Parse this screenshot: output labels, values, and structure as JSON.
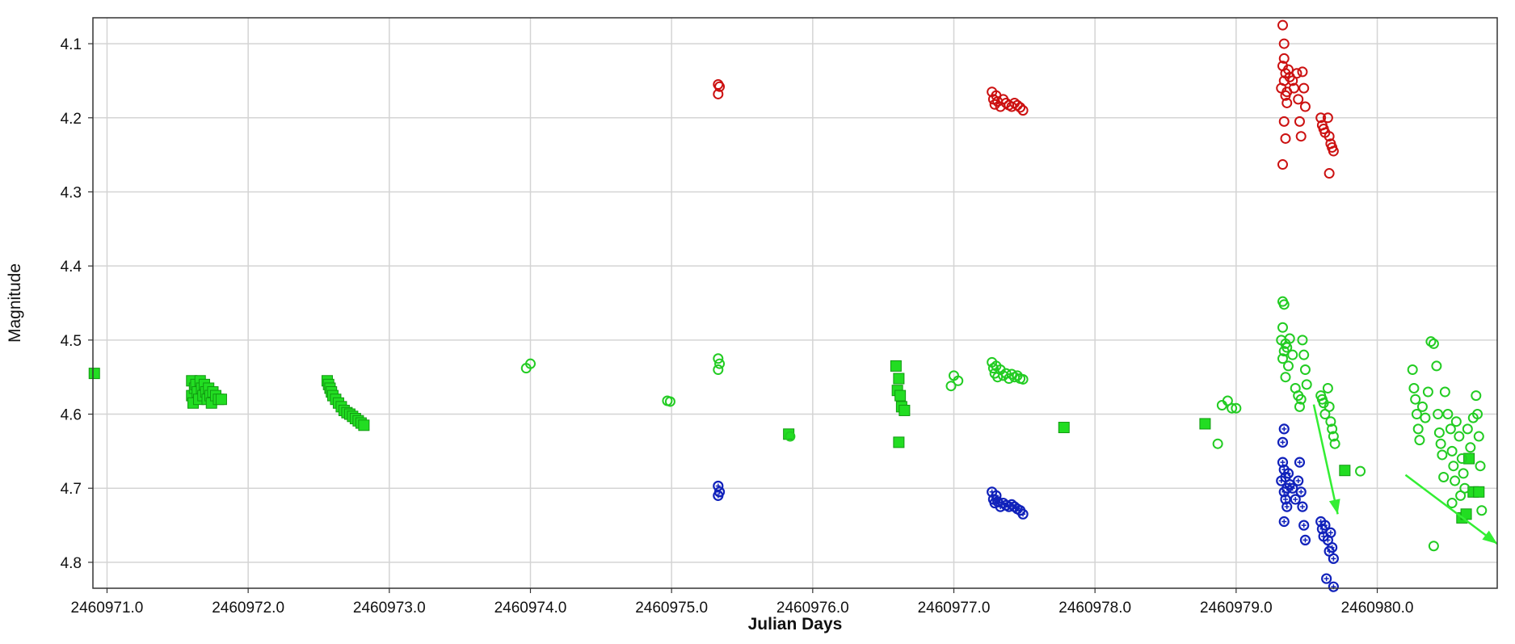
{
  "chart_data": {
    "type": "scatter",
    "title": "",
    "xlabel": "Julian Days",
    "ylabel": "Magnitude",
    "xlim": [
      2460970.9,
      2460980.85
    ],
    "ylim": [
      4.065,
      4.835
    ],
    "y_inverted": true,
    "grid": true,
    "x_ticks": [
      2460971.0,
      2460972.0,
      2460973.0,
      2460974.0,
      2460975.0,
      2460976.0,
      2460977.0,
      2460978.0,
      2460979.0,
      2460980.0
    ],
    "x_tick_labels": [
      "2460971.0",
      "2460972.0",
      "2460973.0",
      "2460974.0",
      "2460975.0",
      "2460976.0",
      "2460977.0",
      "2460978.0",
      "2460979.0",
      "2460980.0"
    ],
    "y_ticks": [
      4.1,
      4.2,
      4.3,
      4.4,
      4.5,
      4.6,
      4.7,
      4.8
    ],
    "y_tick_labels": [
      "4.1",
      "4.2",
      "4.3",
      "4.4",
      "4.5",
      "4.6",
      "4.7",
      "4.8"
    ],
    "series": [
      {
        "marker": "square-filled",
        "color": "#22dd22",
        "points": [
          [
            2460970.91,
            4.545
          ],
          [
            2460971.6,
            4.555
          ],
          [
            2460971.6,
            4.575
          ],
          [
            2460971.61,
            4.585
          ],
          [
            2460971.62,
            4.565
          ],
          [
            2460971.63,
            4.56
          ],
          [
            2460971.64,
            4.57
          ],
          [
            2460971.65,
            4.58
          ],
          [
            2460971.66,
            4.555
          ],
          [
            2460971.67,
            4.565
          ],
          [
            2460971.68,
            4.575
          ],
          [
            2460971.69,
            4.56
          ],
          [
            2460971.7,
            4.57
          ],
          [
            2460971.71,
            4.58
          ],
          [
            2460971.72,
            4.565
          ],
          [
            2460971.73,
            4.575
          ],
          [
            2460971.74,
            4.585
          ],
          [
            2460971.75,
            4.57
          ],
          [
            2460971.77,
            4.575
          ],
          [
            2460971.79,
            4.58
          ],
          [
            2460971.81,
            4.58
          ],
          [
            2460972.56,
            4.555
          ],
          [
            2460972.57,
            4.56
          ],
          [
            2460972.58,
            4.565
          ],
          [
            2460972.59,
            4.57
          ],
          [
            2460972.6,
            4.575
          ],
          [
            2460972.62,
            4.58
          ],
          [
            2460972.64,
            4.585
          ],
          [
            2460972.66,
            4.59
          ],
          [
            2460972.68,
            4.595
          ],
          [
            2460972.7,
            4.598
          ],
          [
            2460972.72,
            4.6
          ],
          [
            2460972.74,
            4.603
          ],
          [
            2460972.76,
            4.606
          ],
          [
            2460972.78,
            4.609
          ],
          [
            2460972.8,
            4.612
          ],
          [
            2460972.82,
            4.615
          ],
          [
            2460975.83,
            4.627
          ],
          [
            2460976.59,
            4.535
          ],
          [
            2460976.61,
            4.552
          ],
          [
            2460976.6,
            4.568
          ],
          [
            2460976.62,
            4.575
          ],
          [
            2460976.63,
            4.59
          ],
          [
            2460976.65,
            4.595
          ],
          [
            2460976.61,
            4.638
          ],
          [
            2460977.78,
            4.618
          ],
          [
            2460978.78,
            4.613
          ],
          [
            2460979.77,
            4.676
          ],
          [
            2460980.6,
            4.74
          ],
          [
            2460980.63,
            4.735
          ],
          [
            2460980.68,
            4.705
          ],
          [
            2460980.72,
            4.705
          ],
          [
            2460980.65,
            4.66
          ]
        ]
      },
      {
        "marker": "circle-open",
        "color": "#22cc22",
        "points": [
          [
            2460973.97,
            4.538
          ],
          [
            2460974.0,
            4.532
          ],
          [
            2460974.97,
            4.582
          ],
          [
            2460974.99,
            4.583
          ],
          [
            2460975.33,
            4.525
          ],
          [
            2460975.34,
            4.532
          ],
          [
            2460975.33,
            4.54
          ],
          [
            2460975.84,
            4.63
          ],
          [
            2460976.98,
            4.562
          ],
          [
            2460977.0,
            4.548
          ],
          [
            2460977.03,
            4.555
          ],
          [
            2460977.27,
            4.53
          ],
          [
            2460977.28,
            4.538
          ],
          [
            2460977.29,
            4.545
          ],
          [
            2460977.3,
            4.535
          ],
          [
            2460977.31,
            4.55
          ],
          [
            2460977.33,
            4.54
          ],
          [
            2460977.35,
            4.548
          ],
          [
            2460977.37,
            4.545
          ],
          [
            2460977.39,
            4.552
          ],
          [
            2460977.41,
            4.546
          ],
          [
            2460977.43,
            4.55
          ],
          [
            2460977.45,
            4.548
          ],
          [
            2460977.47,
            4.552
          ],
          [
            2460977.49,
            4.553
          ],
          [
            2460978.87,
            4.64
          ],
          [
            2460978.9,
            4.588
          ],
          [
            2460978.94,
            4.582
          ],
          [
            2460978.97,
            4.592
          ],
          [
            2460979.0,
            4.592
          ],
          [
            2460979.33,
            4.448
          ],
          [
            2460979.34,
            4.452
          ],
          [
            2460979.33,
            4.483
          ],
          [
            2460979.32,
            4.5
          ],
          [
            2460979.35,
            4.505
          ],
          [
            2460979.34,
            4.515
          ],
          [
            2460979.33,
            4.525
          ],
          [
            2460979.36,
            4.51
          ],
          [
            2460979.38,
            4.498
          ],
          [
            2460979.37,
            4.535
          ],
          [
            2460979.35,
            4.55
          ],
          [
            2460979.4,
            4.52
          ],
          [
            2460979.42,
            4.565
          ],
          [
            2460979.44,
            4.575
          ],
          [
            2460979.45,
            4.59
          ],
          [
            2460979.47,
            4.5
          ],
          [
            2460979.48,
            4.52
          ],
          [
            2460979.49,
            4.54
          ],
          [
            2460979.5,
            4.56
          ],
          [
            2460979.46,
            4.58
          ],
          [
            2460979.6,
            4.575
          ],
          [
            2460979.61,
            4.58
          ],
          [
            2460979.62,
            4.585
          ],
          [
            2460979.63,
            4.6
          ],
          [
            2460979.65,
            4.565
          ],
          [
            2460979.66,
            4.59
          ],
          [
            2460979.67,
            4.61
          ],
          [
            2460979.68,
            4.62
          ],
          [
            2460979.69,
            4.63
          ],
          [
            2460979.7,
            4.64
          ],
          [
            2460979.88,
            4.677
          ],
          [
            2460980.25,
            4.54
          ],
          [
            2460980.26,
            4.565
          ],
          [
            2460980.27,
            4.58
          ],
          [
            2460980.28,
            4.6
          ],
          [
            2460980.29,
            4.62
          ],
          [
            2460980.3,
            4.635
          ],
          [
            2460980.32,
            4.59
          ],
          [
            2460980.34,
            4.605
          ],
          [
            2460980.36,
            4.57
          ],
          [
            2460980.38,
            4.502
          ],
          [
            2460980.4,
            4.505
          ],
          [
            2460980.42,
            4.535
          ],
          [
            2460980.43,
            4.6
          ],
          [
            2460980.44,
            4.625
          ],
          [
            2460980.45,
            4.64
          ],
          [
            2460980.46,
            4.655
          ],
          [
            2460980.47,
            4.685
          ],
          [
            2460980.48,
            4.57
          ],
          [
            2460980.5,
            4.6
          ],
          [
            2460980.52,
            4.62
          ],
          [
            2460980.53,
            4.65
          ],
          [
            2460980.54,
            4.67
          ],
          [
            2460980.55,
            4.69
          ],
          [
            2460980.56,
            4.61
          ],
          [
            2460980.58,
            4.63
          ],
          [
            2460980.6,
            4.66
          ],
          [
            2460980.61,
            4.68
          ],
          [
            2460980.62,
            4.7
          ],
          [
            2460980.64,
            4.62
          ],
          [
            2460980.66,
            4.645
          ],
          [
            2460980.68,
            4.605
          ],
          [
            2460980.7,
            4.575
          ],
          [
            2460980.71,
            4.6
          ],
          [
            2460980.72,
            4.63
          ],
          [
            2460980.73,
            4.67
          ],
          [
            2460980.74,
            4.73
          ],
          [
            2460980.4,
            4.778
          ],
          [
            2460980.59,
            4.71
          ],
          [
            2460980.53,
            4.72
          ]
        ]
      },
      {
        "marker": "circle-open",
        "color": "#cc1111",
        "points": [
          [
            2460975.33,
            4.155
          ],
          [
            2460975.34,
            4.158
          ],
          [
            2460975.33,
            4.168
          ],
          [
            2460977.27,
            4.165
          ],
          [
            2460977.28,
            4.175
          ],
          [
            2460977.29,
            4.182
          ],
          [
            2460977.3,
            4.17
          ],
          [
            2460977.31,
            4.178
          ],
          [
            2460977.33,
            4.185
          ],
          [
            2460977.35,
            4.175
          ],
          [
            2460977.37,
            4.18
          ],
          [
            2460977.39,
            4.183
          ],
          [
            2460977.41,
            4.185
          ],
          [
            2460977.43,
            4.18
          ],
          [
            2460977.45,
            4.183
          ],
          [
            2460977.47,
            4.186
          ],
          [
            2460977.49,
            4.19
          ],
          [
            2460979.33,
            4.075
          ],
          [
            2460979.34,
            4.1
          ],
          [
            2460979.34,
            4.12
          ],
          [
            2460979.33,
            4.13
          ],
          [
            2460979.35,
            4.14
          ],
          [
            2460979.34,
            4.15
          ],
          [
            2460979.32,
            4.16
          ],
          [
            2460979.36,
            4.165
          ],
          [
            2460979.37,
            4.135
          ],
          [
            2460979.38,
            4.145
          ],
          [
            2460979.35,
            4.17
          ],
          [
            2460979.36,
            4.18
          ],
          [
            2460979.34,
            4.205
          ],
          [
            2460979.35,
            4.228
          ],
          [
            2460979.33,
            4.263
          ],
          [
            2460979.4,
            4.15
          ],
          [
            2460979.41,
            4.16
          ],
          [
            2460979.43,
            4.14
          ],
          [
            2460979.44,
            4.175
          ],
          [
            2460979.45,
            4.205
          ],
          [
            2460979.46,
            4.225
          ],
          [
            2460979.47,
            4.138
          ],
          [
            2460979.48,
            4.16
          ],
          [
            2460979.49,
            4.185
          ],
          [
            2460979.6,
            4.2
          ],
          [
            2460979.61,
            4.21
          ],
          [
            2460979.62,
            4.215
          ],
          [
            2460979.63,
            4.22
          ],
          [
            2460979.65,
            4.2
          ],
          [
            2460979.66,
            4.225
          ],
          [
            2460979.67,
            4.235
          ],
          [
            2460979.68,
            4.24
          ],
          [
            2460979.69,
            4.245
          ],
          [
            2460979.66,
            4.275
          ]
        ]
      },
      {
        "marker": "circle-star",
        "color": "#1122bb",
        "points": [
          [
            2460975.33,
            4.697
          ],
          [
            2460975.34,
            4.705
          ],
          [
            2460975.33,
            4.71
          ],
          [
            2460977.27,
            4.705
          ],
          [
            2460977.28,
            4.715
          ],
          [
            2460977.29,
            4.72
          ],
          [
            2460977.3,
            4.71
          ],
          [
            2460977.31,
            4.718
          ],
          [
            2460977.33,
            4.725
          ],
          [
            2460977.35,
            4.72
          ],
          [
            2460977.37,
            4.723
          ],
          [
            2460977.39,
            4.725
          ],
          [
            2460977.41,
            4.722
          ],
          [
            2460977.43,
            4.725
          ],
          [
            2460977.45,
            4.728
          ],
          [
            2460977.47,
            4.73
          ],
          [
            2460977.49,
            4.735
          ],
          [
            2460979.34,
            4.62
          ],
          [
            2460979.33,
            4.638
          ],
          [
            2460979.33,
            4.665
          ],
          [
            2460979.34,
            4.675
          ],
          [
            2460979.35,
            4.685
          ],
          [
            2460979.32,
            4.69
          ],
          [
            2460979.36,
            4.7
          ],
          [
            2460979.34,
            4.705
          ],
          [
            2460979.37,
            4.68
          ],
          [
            2460979.38,
            4.695
          ],
          [
            2460979.35,
            4.715
          ],
          [
            2460979.36,
            4.725
          ],
          [
            2460979.34,
            4.745
          ],
          [
            2460979.4,
            4.7
          ],
          [
            2460979.42,
            4.715
          ],
          [
            2460979.44,
            4.69
          ],
          [
            2460979.45,
            4.665
          ],
          [
            2460979.46,
            4.705
          ],
          [
            2460979.47,
            4.725
          ],
          [
            2460979.48,
            4.75
          ],
          [
            2460979.49,
            4.77
          ],
          [
            2460979.6,
            4.745
          ],
          [
            2460979.61,
            4.755
          ],
          [
            2460979.62,
            4.765
          ],
          [
            2460979.63,
            4.75
          ],
          [
            2460979.65,
            4.77
          ],
          [
            2460979.66,
            4.785
          ],
          [
            2460979.67,
            4.76
          ],
          [
            2460979.68,
            4.78
          ],
          [
            2460979.69,
            4.795
          ],
          [
            2460979.64,
            4.822
          ],
          [
            2460979.69,
            4.833
          ]
        ]
      }
    ],
    "annotations": [
      {
        "type": "arrow",
        "color": "#33ee33",
        "from": [
          2460979.55,
          4.587
        ],
        "to": [
          2460979.72,
          4.735
        ]
      },
      {
        "type": "arrow",
        "color": "#33ee33",
        "from": [
          2460980.2,
          4.682
        ],
        "to": [
          2460980.85,
          4.775
        ]
      }
    ]
  }
}
